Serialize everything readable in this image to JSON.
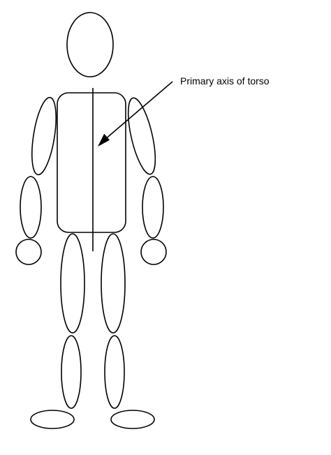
{
  "annotation": {
    "label": "Primary axis of torso"
  },
  "colors": {
    "stroke": "#000000",
    "background": "#ffffff"
  }
}
